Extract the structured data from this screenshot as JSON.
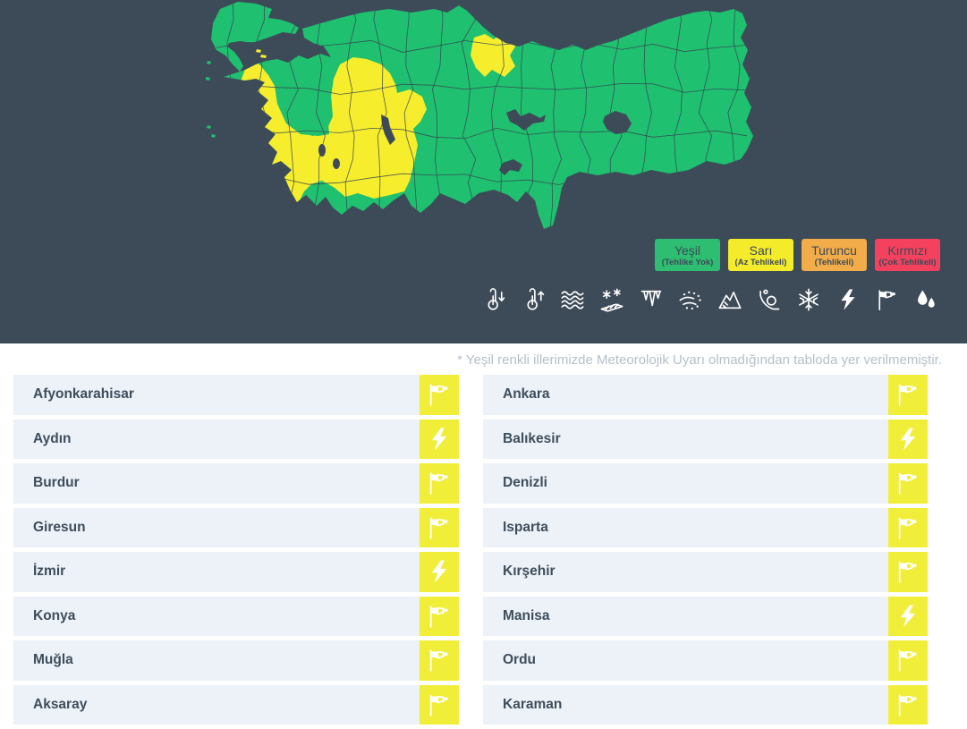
{
  "colors": {
    "background_dark": "#3d4a58",
    "map_green": "#1fc06f",
    "map_yellow": "#f6ed2d",
    "icon_yellow": "#f1ee39",
    "row_bg": "#ecf2f7",
    "row_text": "#3e4d5d",
    "note_text": "#b5bfc9",
    "legend_text": "#3d4a58"
  },
  "legend": [
    {
      "label": "Yeşil",
      "sublabel": "(Tehlike Yok)",
      "color": "#2dbe71"
    },
    {
      "label": "Sarı",
      "sublabel": "(Az Tehlikeli)",
      "color": "#f4eb2b"
    },
    {
      "label": "Turuncu",
      "sublabel": "(Tehlikeli)",
      "color": "#f2ac49"
    },
    {
      "label": "Kırmızı",
      "sublabel": "(Çok Tehlikeli)",
      "color": "#f4415e"
    }
  ],
  "weather_icons": [
    {
      "name": "low-temperature"
    },
    {
      "name": "high-temperature"
    },
    {
      "name": "rough-sea"
    },
    {
      "name": "agricultural-frost"
    },
    {
      "name": "icing"
    },
    {
      "name": "blowing-snow"
    },
    {
      "name": "avalanche"
    },
    {
      "name": "landslide"
    },
    {
      "name": "snow"
    },
    {
      "name": "thunderstorm"
    },
    {
      "name": "wind"
    },
    {
      "name": "heavy-rain"
    }
  ],
  "note": "* Yeşil renkli illerimizde Meteorolojik Uyarı olmadığından tabloda yer verilmemiştir.",
  "map": {
    "yellow_provinces": [
      "Afyonkarahisar",
      "Aydın",
      "Burdur",
      "Giresun",
      "İzmir",
      "Konya",
      "Muğla",
      "Aksaray",
      "Ankara",
      "Balıkesir",
      "Denizli",
      "Isparta",
      "Kırşehir",
      "Manisa",
      "Ordu",
      "Karaman"
    ]
  },
  "warnings": {
    "left": [
      {
        "province": "Afyonkarahisar",
        "warning": "wind"
      },
      {
        "province": "Aydın",
        "warning": "thunderstorm"
      },
      {
        "province": "Burdur",
        "warning": "wind"
      },
      {
        "province": "Giresun",
        "warning": "wind"
      },
      {
        "province": "İzmir",
        "warning": "thunderstorm"
      },
      {
        "province": "Konya",
        "warning": "wind"
      },
      {
        "province": "Muğla",
        "warning": "wind"
      },
      {
        "province": "Aksaray",
        "warning": "wind"
      }
    ],
    "right": [
      {
        "province": "Ankara",
        "warning": "wind"
      },
      {
        "province": "Balıkesir",
        "warning": "thunderstorm"
      },
      {
        "province": "Denizli",
        "warning": "wind"
      },
      {
        "province": "Isparta",
        "warning": "wind"
      },
      {
        "province": "Kırşehir",
        "warning": "wind"
      },
      {
        "province": "Manisa",
        "warning": "thunderstorm"
      },
      {
        "province": "Ordu",
        "warning": "wind"
      },
      {
        "province": "Karaman",
        "warning": "wind"
      }
    ]
  }
}
